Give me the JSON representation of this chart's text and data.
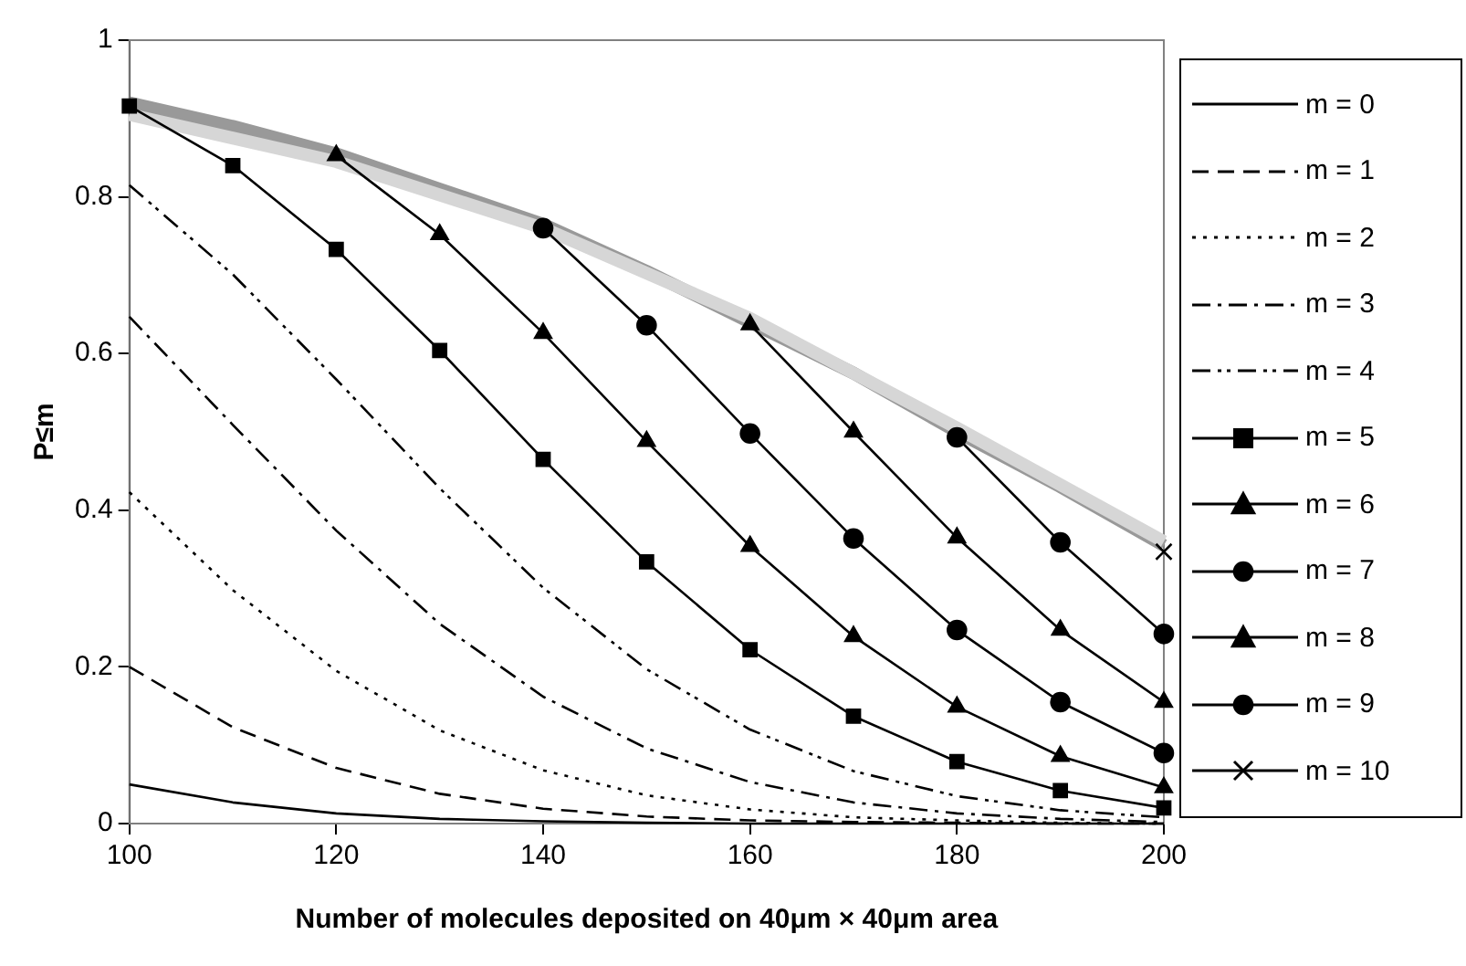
{
  "chart_data": {
    "type": "line",
    "xlabel": "Number of molecules deposited on 40μm × 40μm area",
    "ylabel": "P≤m",
    "x": [
      100,
      110,
      120,
      130,
      140,
      150,
      160,
      170,
      180,
      190,
      200
    ],
    "xlim": [
      100,
      200
    ],
    "xticks": [
      100,
      120,
      140,
      160,
      180,
      200
    ],
    "ylim": [
      0,
      1
    ],
    "yticks": [
      0,
      0.2,
      0.4,
      0.6,
      0.8,
      1
    ],
    "grid": false,
    "legend": "right",
    "series": [
      {
        "name": "m = 0",
        "color": "#000000",
        "line_style": "solid",
        "marker": "none",
        "values": [
          0.05,
          0.027,
          0.013,
          0.006,
          0.003,
          0.001,
          0,
          0,
          0,
          0,
          0
        ]
      },
      {
        "name": "m = 1",
        "color": "#000000",
        "line_style": "dashed",
        "marker": "none",
        "values": [
          0.2,
          0.123,
          0.071,
          0.038,
          0.019,
          0.009,
          0.004,
          0.002,
          0.001,
          0,
          0
        ]
      },
      {
        "name": "m = 2",
        "color": "#000000",
        "line_style": "dotted",
        "marker": "none",
        "values": [
          0.423,
          0.298,
          0.195,
          0.119,
          0.068,
          0.036,
          0.018,
          0.008,
          0.004,
          0.001,
          0
        ]
      },
      {
        "name": "m = 3",
        "color": "#000000",
        "line_style": "dashdot",
        "marker": "none",
        "values": [
          0.647,
          0.509,
          0.374,
          0.255,
          0.162,
          0.096,
          0.053,
          0.027,
          0.013,
          0.006,
          0.002
        ]
      },
      {
        "name": "m = 4",
        "color": "#000000",
        "line_style": "dashdotdot",
        "marker": "none",
        "values": [
          0.815,
          0.701,
          0.567,
          0.428,
          0.301,
          0.197,
          0.12,
          0.067,
          0.035,
          0.017,
          0.008
        ]
      },
      {
        "name": "m = 5",
        "color": "#000000",
        "line_style": "solid",
        "marker": "square",
        "values": [
          0.916,
          0.84,
          0.733,
          0.604,
          0.465,
          0.334,
          0.222,
          0.137,
          0.079,
          0.042,
          0.02
        ]
      },
      {
        "name": "m = 6",
        "color": "#000000",
        "line_style": "solid",
        "marker": "triangle",
        "values": [
          null,
          null,
          0.853,
          0.752,
          0.626,
          0.488,
          0.354,
          0.239,
          0.149,
          0.086,
          0.046
        ]
      },
      {
        "name": "m = 7",
        "color": "#000000",
        "line_style": "solid",
        "marker": "circle",
        "values": [
          null,
          null,
          null,
          null,
          0.76,
          0.636,
          0.498,
          0.364,
          0.247,
          0.155,
          0.09
        ]
      },
      {
        "name": "m = 8",
        "color": "#000000",
        "line_style": "solid",
        "marker": "triangle",
        "values": [
          null,
          null,
          null,
          null,
          null,
          null,
          0.637,
          0.5,
          0.365,
          0.247,
          0.155
        ]
      },
      {
        "name": "m = 9",
        "color": "#000000",
        "line_style": "solid",
        "marker": "circle",
        "values": [
          null,
          null,
          null,
          null,
          null,
          null,
          null,
          null,
          0.493,
          0.359,
          0.242
        ]
      },
      {
        "name": "m = 10",
        "color": "#000000",
        "line_style": "solid",
        "marker": "cross",
        "values": [
          null,
          null,
          null,
          null,
          null,
          null,
          null,
          null,
          null,
          null,
          0.347
        ]
      },
      {
        "color": "#d6d6d6",
        "line_style": "solid",
        "marker": "none",
        "x": [
          100,
          120,
          140,
          160,
          180,
          200
        ],
        "values": [
          0.905,
          0.845,
          0.76,
          0.645,
          0.505,
          0.36
        ]
      },
      {
        "color": "#999999",
        "line_style": "solid",
        "marker": "none",
        "x": [
          100,
          110,
          120,
          130,
          140,
          150,
          160,
          170,
          180,
          190,
          200
        ],
        "values": [
          0.92,
          0.89,
          0.855,
          0.81,
          0.765,
          0.705,
          0.64,
          0.575,
          0.5,
          0.43,
          0.355
        ]
      }
    ]
  }
}
